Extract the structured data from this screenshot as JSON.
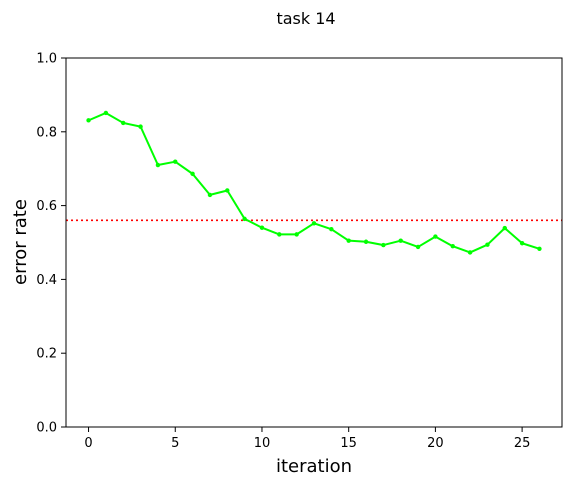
{
  "chart_data": {
    "type": "line",
    "title": "task 14",
    "xlabel": "iteration",
    "ylabel": "error rate",
    "xlim": [
      -1.3,
      27.3
    ],
    "ylim": [
      0.0,
      1.0
    ],
    "xticks": [
      0,
      5,
      10,
      15,
      20,
      25
    ],
    "yticks": [
      0.0,
      0.2,
      0.4,
      0.6,
      0.8,
      1.0
    ],
    "xtick_labels": [
      "0",
      "5",
      "10",
      "15",
      "20",
      "25"
    ],
    "ytick_labels": [
      "0.0",
      "0.2",
      "0.4",
      "0.6",
      "0.8",
      "1.0"
    ],
    "grid": false,
    "series": [
      {
        "color": "#00ff00",
        "marker": "dot",
        "x": [
          0,
          1,
          2,
          3,
          4,
          5,
          6,
          7,
          8,
          9,
          10,
          11,
          12,
          13,
          14,
          15,
          16,
          17,
          18,
          19,
          20,
          21,
          22,
          23,
          24,
          25,
          26
        ],
        "y": [
          0.831,
          0.851,
          0.824,
          0.814,
          0.71,
          0.719,
          0.686,
          0.629,
          0.641,
          0.564,
          0.54,
          0.522,
          0.522,
          0.552,
          0.536,
          0.505,
          0.502,
          0.493,
          0.505,
          0.488,
          0.516,
          0.49,
          0.473,
          0.494,
          0.539,
          0.498,
          0.483
        ]
      }
    ],
    "reference_line": {
      "y": 0.56,
      "color": "#ff0000",
      "style": "dotted"
    }
  }
}
